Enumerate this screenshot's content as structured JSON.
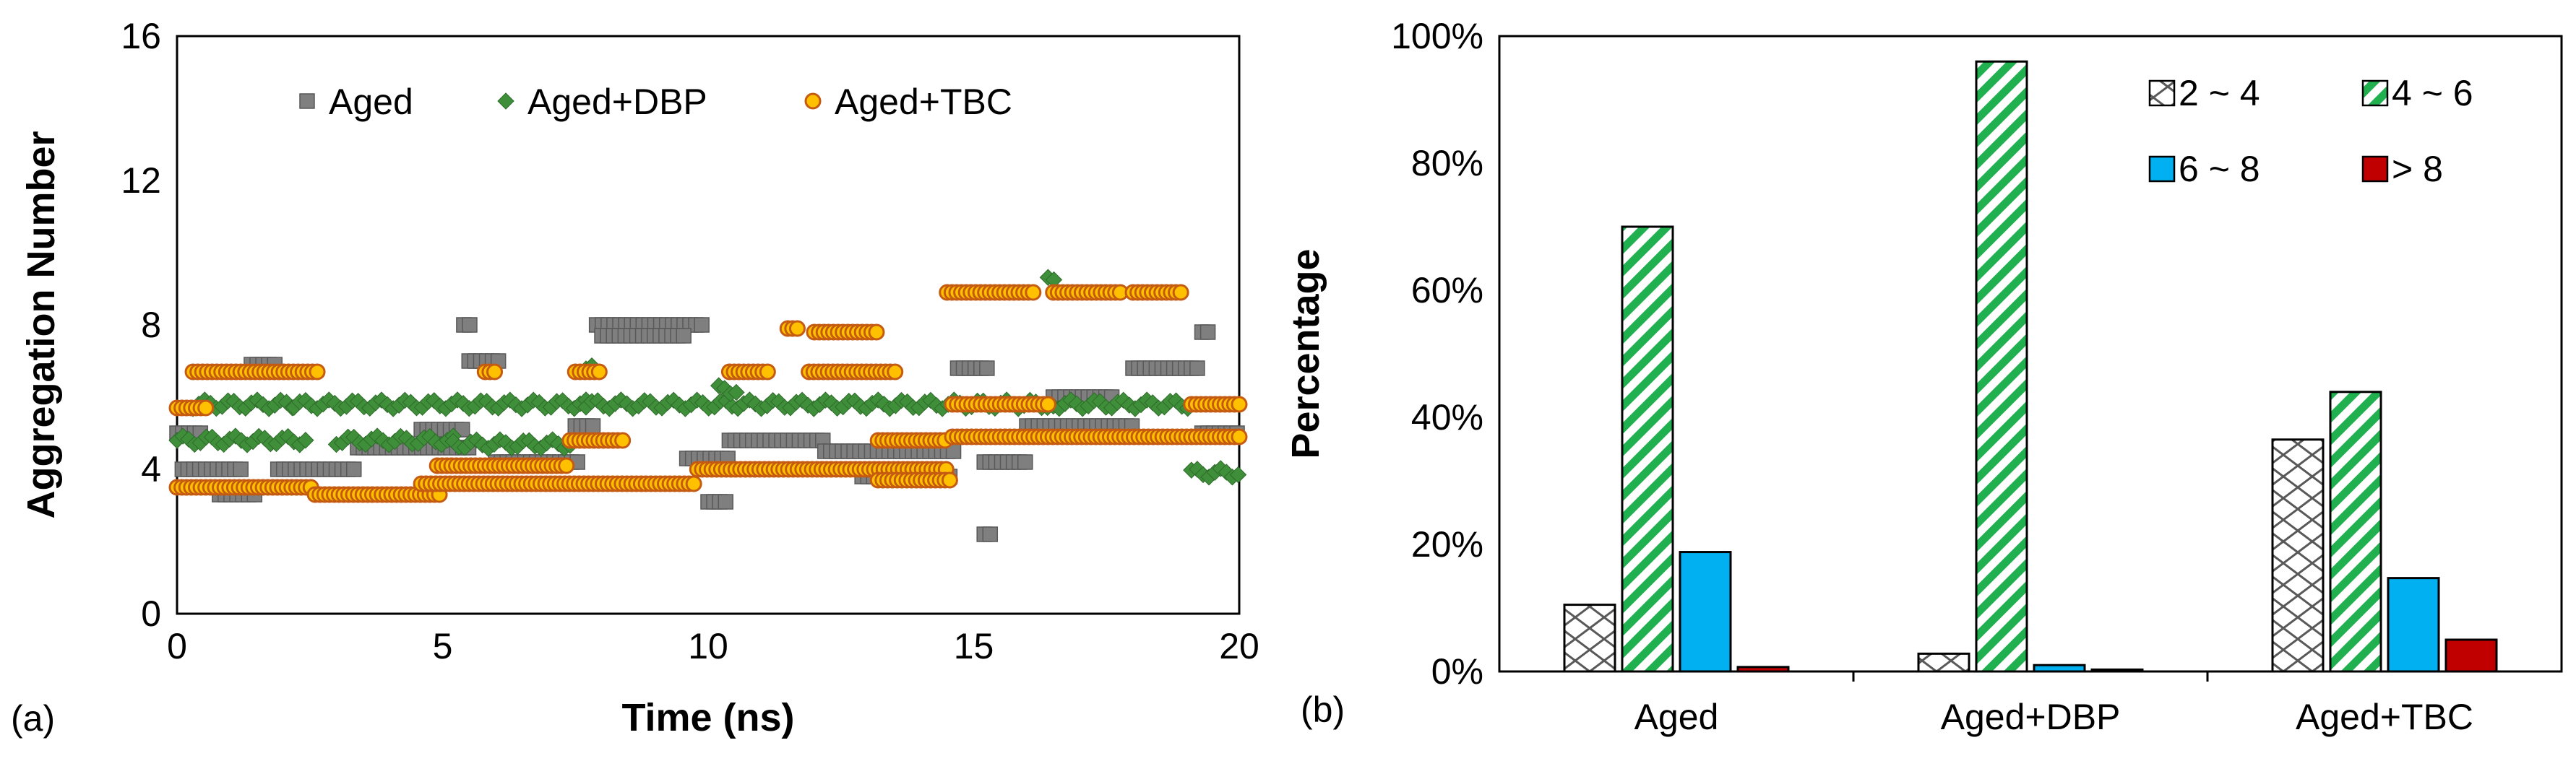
{
  "figure": {
    "panels": [
      "(a)",
      "(b)"
    ]
  },
  "colors": {
    "aged": "#7f7f7f",
    "aged_dbp": "#3f8f3a",
    "aged_tbc_fill": "#ffc000",
    "aged_tbc_edge": "#c55a11",
    "bin_2_4": "#595959",
    "bin_4_6": "#20b050",
    "bin_6_8": "#00b0f0",
    "bin_gt8": "#c00000"
  },
  "chart_data": [
    {
      "type": "scatter",
      "panel_label": "(a)",
      "xlabel": "Time (ns)",
      "ylabel": "Aggregation Number",
      "xlim": [
        0,
        20
      ],
      "ylim": [
        0,
        16
      ],
      "xticks": [
        "0",
        "5",
        "10",
        "15",
        "20"
      ],
      "yticks": [
        "0",
        "4",
        "8",
        "12",
        "16"
      ],
      "grid": false,
      "legend_position": "top",
      "series": [
        {
          "name": "Aged",
          "marker": "square",
          "segments": [
            {
              "x": [
                0.0,
                0.5
              ],
              "y": 5.0
            },
            {
              "x": [
                0.1,
                1.2
              ],
              "y": 4.0
            },
            {
              "x": [
                0.8,
                1.5
              ],
              "y": 3.3
            },
            {
              "x": [
                1.4,
                1.9
              ],
              "y": 6.9
            },
            {
              "x": [
                1.9,
                3.4
              ],
              "y": 4.0
            },
            {
              "x": [
                3.4,
                5.5
              ],
              "y": 4.6
            },
            {
              "x": [
                4.6,
                5.4
              ],
              "y": 5.1
            },
            {
              "x": [
                5.4,
                5.6
              ],
              "y": 8.0
            },
            {
              "x": [
                5.5,
                6.1
              ],
              "y": 7.0
            },
            {
              "x": [
                6.0,
                7.6
              ],
              "y": 4.2
            },
            {
              "x": [
                7.5,
                7.9
              ],
              "y": 5.2
            },
            {
              "x": [
                7.9,
                9.9
              ],
              "y": 8.0
            },
            {
              "x": [
                8.0,
                9.6
              ],
              "y": 7.7
            },
            {
              "x": [
                9.6,
                10.4
              ],
              "y": 4.3
            },
            {
              "x": [
                10.0,
                10.4
              ],
              "y": 3.1
            },
            {
              "x": [
                10.4,
                12.2
              ],
              "y": 4.8
            },
            {
              "x": [
                12.2,
                14.7
              ],
              "y": 4.5
            },
            {
              "x": [
                12.9,
                14.6
              ],
              "y": 3.8
            },
            {
              "x": [
                14.7,
                15.3
              ],
              "y": 6.8
            },
            {
              "x": [
                15.2,
                15.4
              ],
              "y": 2.2
            },
            {
              "x": [
                15.2,
                16.0
              ],
              "y": 4.2
            },
            {
              "x": [
                16.0,
                18.0
              ],
              "y": 5.2
            },
            {
              "x": [
                16.5,
                17.6
              ],
              "y": 6.0
            },
            {
              "x": [
                18.0,
                19.3
              ],
              "y": 6.8
            },
            {
              "x": [
                19.3,
                19.5
              ],
              "y": 7.8
            },
            {
              "x": [
                19.3,
                20.0
              ],
              "y": 5.0
            }
          ]
        },
        {
          "name": "Aged+DBP",
          "marker": "diamond",
          "segments": [
            {
              "x": [
                0.0,
                2.5
              ],
              "y": 4.8
            },
            {
              "x": [
                0.3,
                2.2
              ],
              "y": 5.8
            },
            {
              "x": [
                2.2,
                7.7
              ],
              "y": 5.8
            },
            {
              "x": [
                3.0,
                5.2
              ],
              "y": 4.8
            },
            {
              "x": [
                5.2,
                7.4
              ],
              "y": 4.7
            },
            {
              "x": [
                7.7,
                7.9
              ],
              "y": 6.9
            },
            {
              "x": [
                7.7,
                16.4
              ],
              "y": 5.8
            },
            {
              "x": [
                10.2,
                10.6
              ],
              "y": 6.2
            },
            {
              "x": [
                16.4,
                16.6
              ],
              "y": 9.2
            },
            {
              "x": [
                16.5,
                19.1
              ],
              "y": 5.8
            },
            {
              "x": [
                19.1,
                20.0
              ],
              "y": 3.9
            }
          ]
        },
        {
          "name": "Aged+TBC",
          "marker": "circle",
          "segments": [
            {
              "x": [
                0.0,
                2.6
              ],
              "y": 3.5
            },
            {
              "x": [
                0.0,
                0.6
              ],
              "y": 5.7
            },
            {
              "x": [
                0.3,
                2.7
              ],
              "y": 6.7
            },
            {
              "x": [
                2.6,
                5.0
              ],
              "y": 3.3
            },
            {
              "x": [
                4.6,
                9.8
              ],
              "y": 3.6
            },
            {
              "x": [
                4.9,
                7.4
              ],
              "y": 4.1
            },
            {
              "x": [
                7.4,
                8.4
              ],
              "y": 4.8
            },
            {
              "x": [
                5.8,
                6.0
              ],
              "y": 6.7
            },
            {
              "x": [
                7.5,
                8.0
              ],
              "y": 6.7
            },
            {
              "x": [
                9.8,
                14.5
              ],
              "y": 4.0
            },
            {
              "x": [
                10.4,
                11.2
              ],
              "y": 6.7
            },
            {
              "x": [
                11.5,
                11.7
              ],
              "y": 7.9
            },
            {
              "x": [
                11.9,
                13.6
              ],
              "y": 6.7
            },
            {
              "x": [
                12.0,
                13.2
              ],
              "y": 7.8
            },
            {
              "x": [
                13.2,
                14.5
              ],
              "y": 4.8
            },
            {
              "x": [
                13.2,
                14.6
              ],
              "y": 3.7
            },
            {
              "x": [
                14.5,
                16.2
              ],
              "y": 8.9
            },
            {
              "x": [
                14.6,
                20.0
              ],
              "y": 4.9
            },
            {
              "x": [
                14.6,
                16.4
              ],
              "y": 5.8
            },
            {
              "x": [
                16.5,
                17.8
              ],
              "y": 8.9
            },
            {
              "x": [
                18.0,
                18.9
              ],
              "y": 8.9
            },
            {
              "x": [
                19.1,
                20.0
              ],
              "y": 5.8
            }
          ]
        }
      ]
    },
    {
      "type": "bar",
      "panel_label": "(b)",
      "xlabel": "",
      "ylabel": "Percentage",
      "ylim": [
        0,
        100
      ],
      "yticks": [
        "0%",
        "20%",
        "40%",
        "60%",
        "80%",
        "100%"
      ],
      "categories": [
        "Aged",
        "Aged+DBP",
        "Aged+TBC"
      ],
      "grid": false,
      "legend_position": "top-right",
      "series": [
        {
          "name": "2 ~ 4",
          "pattern": "cross-hatch",
          "values": [
            10.5,
            2.8,
            36.5
          ]
        },
        {
          "name": "4 ~ 6",
          "pattern": "diagonal-stripes",
          "values": [
            70.0,
            96.0,
            44.0
          ]
        },
        {
          "name": "6 ~ 8",
          "pattern": "solid",
          "values": [
            18.8,
            1.0,
            14.7
          ]
        },
        {
          "name": "> 8",
          "pattern": "solid",
          "values": [
            0.7,
            0.3,
            5.0
          ]
        }
      ]
    }
  ]
}
